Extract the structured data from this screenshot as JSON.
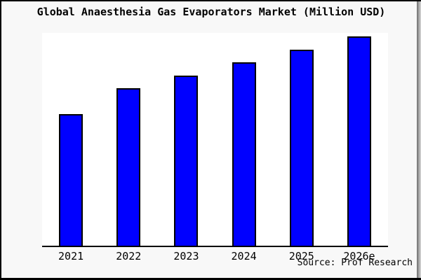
{
  "window": {
    "background": "#f8f8f8",
    "border_color": "#000000",
    "plot_background": "#ffffff"
  },
  "title": "Global Anaesthesia Gas Evaporators Market (Million USD)",
  "source_note": "Source: Prof Research",
  "chart_data": {
    "type": "bar",
    "title": "Global Anaesthesia Gas Evaporators Market (Million USD)",
    "categories": [
      "2021",
      "2022",
      "2023",
      "2024",
      "2025",
      "2026e"
    ],
    "values": [
      61.8,
      73.9,
      80.1,
      86.3,
      92.2,
      98.4
    ],
    "values_note": "relative bar heights in % of plot height — chart displays no numeric value axis or data labels",
    "xlabel": "",
    "ylabel": "",
    "y_axis_visible": false,
    "gridlines": false,
    "legend": false,
    "bar_color": "#0000ff",
    "bar_border_color": "#000000",
    "source": "Source: Prof Research"
  }
}
